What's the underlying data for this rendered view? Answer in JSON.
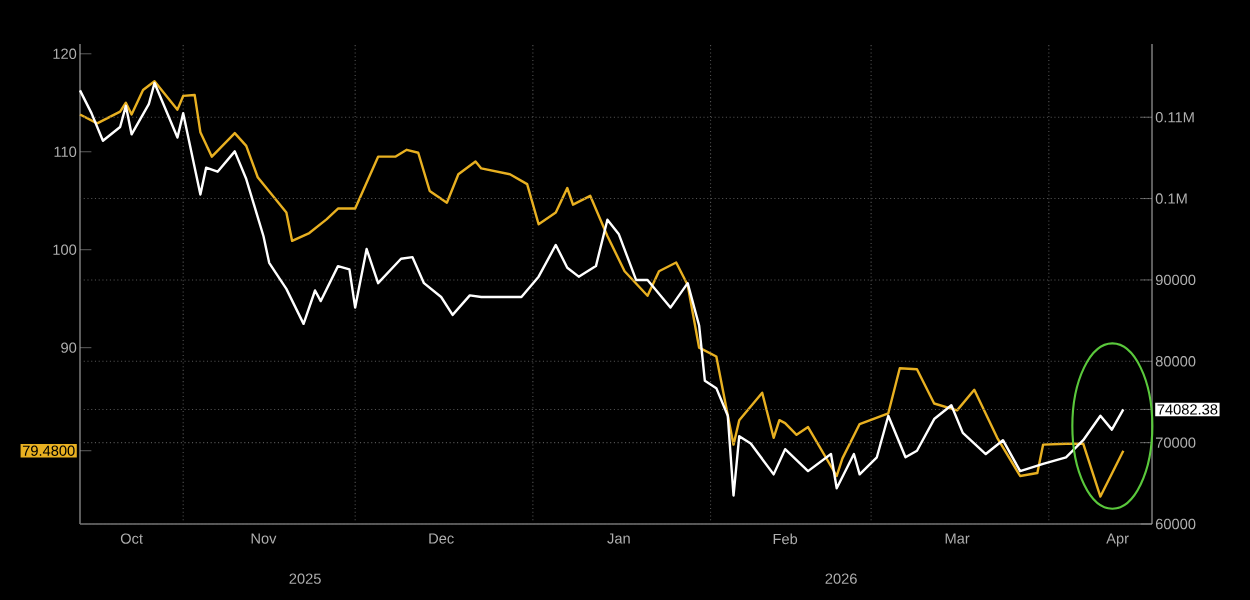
{
  "chart_data": {
    "type": "line",
    "xlim": [
      "2025-10-14",
      "2026-04-19"
    ],
    "xticks": [
      {
        "value": "2025-10-23",
        "label": "Oct"
      },
      {
        "value": "2025-11-01",
        "label": null
      },
      {
        "value": "2025-11-15",
        "label": "Nov"
      },
      {
        "value": "2025-12-01",
        "label": null
      },
      {
        "value": "2025-12-16",
        "label": "Dec"
      },
      {
        "value": "2026-01-01",
        "label": null
      },
      {
        "value": "2026-01-16",
        "label": "Jan"
      },
      {
        "value": "2026-02-01",
        "label": null
      },
      {
        "value": "2026-02-14",
        "label": "Feb"
      },
      {
        "value": "2026-03-01",
        "label": null
      },
      {
        "value": "2026-03-16",
        "label": "Mar"
      },
      {
        "value": "2026-04-01",
        "label": null
      },
      {
        "value": "2026-04-13",
        "label": "Apr"
      }
    ],
    "ylim": [
      72,
      121
    ],
    "yticks": [
      {
        "value": 79.48,
        "label": "79.4800"
      },
      90,
      100,
      110,
      120
    ],
    "y2lim": [
      60000,
      119000
    ],
    "y2ticks": [
      60000,
      70000,
      {
        "value": 74082.38,
        "label": "74082.38"
      },
      80000,
      90000,
      {
        "value": 100000,
        "label": "0.1M"
      },
      {
        "value": 110000,
        "label": "0.11M"
      }
    ],
    "grid": true,
    "annotations": [
      "2025",
      "2026"
    ],
    "series": [
      {
        "color": "#e8b021",
        "axis": "y",
        "x": [
          "2025-10-14",
          "2025-10-17",
          "2025-10-21",
          "2025-10-22",
          "2025-10-23",
          "2025-10-25",
          "2025-10-27",
          "2025-10-31",
          "2025-11-01",
          "2025-11-03",
          "2025-11-04",
          "2025-11-06",
          "2025-11-10",
          "2025-11-12",
          "2025-11-14",
          "2025-11-19",
          "2025-11-20",
          "2025-11-23",
          "2025-11-26",
          "2025-11-28",
          "2025-12-01",
          "2025-12-05",
          "2025-12-08",
          "2025-12-10",
          "2025-12-12",
          "2025-12-14",
          "2025-12-17",
          "2025-12-19",
          "2025-12-22",
          "2025-12-23",
          "2025-12-28",
          "2025-12-31",
          "2026-01-02",
          "2026-01-05",
          "2026-01-07",
          "2026-01-08",
          "2026-01-11",
          "2026-01-14",
          "2026-01-17",
          "2026-01-21",
          "2026-01-23",
          "2026-01-26",
          "2026-01-28",
          "2026-01-30",
          "2026-02-02",
          "2026-02-05",
          "2026-02-06",
          "2026-02-10",
          "2026-02-12",
          "2026-02-13",
          "2026-02-14",
          "2026-02-16",
          "2026-02-18",
          "2026-02-23",
          "2026-02-24",
          "2026-02-27",
          "2026-03-04",
          "2026-03-06",
          "2026-03-09",
          "2026-03-12",
          "2026-03-16",
          "2026-03-19",
          "2026-03-23",
          "2026-03-27",
          "2026-03-30",
          "2026-03-31",
          "2026-04-04",
          "2026-04-07",
          "2026-04-10",
          "2026-04-14"
        ],
        "values": [
          113.8,
          112.9,
          114.1,
          115.0,
          113.8,
          116.3,
          117.2,
          114.3,
          115.7,
          115.8,
          112.0,
          109.5,
          111.9,
          110.6,
          107.4,
          103.8,
          100.9,
          101.7,
          103.1,
          104.2,
          104.2,
          109.5,
          109.5,
          110.2,
          109.9,
          106.0,
          104.8,
          107.7,
          109.0,
          108.3,
          107.7,
          106.7,
          102.6,
          103.8,
          106.3,
          104.6,
          105.5,
          101.4,
          97.8,
          95.3,
          97.8,
          98.7,
          96.4,
          90.0,
          89.1,
          80.1,
          82.6,
          85.4,
          80.8,
          82.6,
          82.3,
          81.1,
          81.9,
          76.9,
          78.7,
          82.2,
          83.3,
          87.9,
          87.8,
          84.3,
          83.6,
          85.7,
          80.8,
          76.9,
          77.2,
          80.1,
          80.2,
          80.2,
          74.8,
          79.48
        ]
      },
      {
        "color": "#ffffff",
        "axis": "y2",
        "x": [
          "2025-10-14",
          "2025-10-16",
          "2025-10-18",
          "2025-10-21",
          "2025-10-22",
          "2025-10-23",
          "2025-10-26",
          "2025-10-27",
          "2025-10-31",
          "2025-11-01",
          "2025-11-04",
          "2025-11-05",
          "2025-11-07",
          "2025-11-10",
          "2025-11-12",
          "2025-11-15",
          "2025-11-16",
          "2025-11-19",
          "2025-11-22",
          "2025-11-24",
          "2025-11-25",
          "2025-11-28",
          "2025-11-30",
          "2025-12-01",
          "2025-12-03",
          "2025-12-05",
          "2025-12-09",
          "2025-12-11",
          "2025-12-13",
          "2025-12-16",
          "2025-12-18",
          "2025-12-21",
          "2025-12-23",
          "2025-12-30",
          "2026-01-02",
          "2026-01-05",
          "2026-01-07",
          "2026-01-09",
          "2026-01-12",
          "2026-01-14",
          "2026-01-16",
          "2026-01-19",
          "2026-01-21",
          "2026-01-25",
          "2026-01-28",
          "2026-01-30",
          "2026-01-31",
          "2026-02-02",
          "2026-02-04",
          "2026-02-05",
          "2026-02-06",
          "2026-02-08",
          "2026-02-12",
          "2026-02-14",
          "2026-02-18",
          "2026-02-22",
          "2026-02-23",
          "2026-02-26",
          "2026-02-27",
          "2026-03-02",
          "2026-03-04",
          "2026-03-07",
          "2026-03-09",
          "2026-03-12",
          "2026-03-15",
          "2026-03-17",
          "2026-03-21",
          "2026-03-24",
          "2026-03-27",
          "2026-03-31",
          "2026-04-04",
          "2026-04-07",
          "2026-04-10",
          "2026-04-12",
          "2026-04-14"
        ],
        "values": [
          113300,
          110500,
          107100,
          108800,
          111400,
          107900,
          111600,
          114200,
          107500,
          110500,
          100500,
          103800,
          103300,
          105800,
          102400,
          95400,
          92100,
          88900,
          84600,
          88700,
          87400,
          91700,
          91300,
          86600,
          93800,
          89600,
          92600,
          92800,
          89600,
          87900,
          85700,
          88100,
          87900,
          87900,
          90400,
          94300,
          91500,
          90400,
          91700,
          97400,
          95600,
          90000,
          90000,
          86600,
          89600,
          84400,
          77600,
          76700,
          73300,
          63500,
          70800,
          69900,
          66100,
          69200,
          66500,
          68600,
          64400,
          68600,
          66100,
          68200,
          73300,
          68200,
          69000,
          72900,
          74600,
          71200,
          68600,
          70300,
          66500,
          67400,
          68200,
          70300,
          73300,
          71600,
          74082.38
        ]
      }
    ]
  }
}
